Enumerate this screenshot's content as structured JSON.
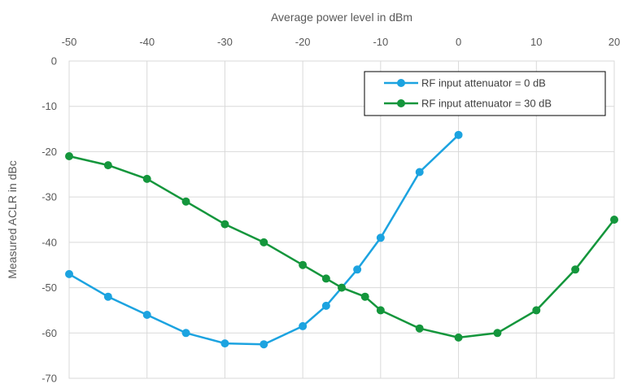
{
  "chart_data": {
    "type": "line",
    "xlabel": "Average power level in dBm",
    "ylabel": "Measured ACLR in dBc",
    "xlim": [
      -50,
      20
    ],
    "ylim": [
      -70,
      0
    ],
    "x_ticks": [
      "-50",
      "-40",
      "-30",
      "-20",
      "-10",
      "0",
      "10",
      "20"
    ],
    "y_ticks": [
      "0",
      "-10",
      "-20",
      "-30",
      "-40",
      "-50",
      "-60",
      "-70"
    ],
    "grid": true,
    "x_axis_position": "top",
    "legend_position": "top-right",
    "series": [
      {
        "name": "RF input attenuator = 0 dB",
        "color": "#1ca3e0",
        "x": [
          -50,
          -45,
          -40,
          -35,
          -30,
          -25,
          -20,
          -17,
          -13,
          -10,
          -5,
          0
        ],
        "y": [
          -47,
          -52,
          -56,
          -60,
          -62.3,
          -62.5,
          -58.5,
          -54,
          -46,
          -39,
          -24.5,
          -16.3
        ]
      },
      {
        "name": "RF input attenuator = 30 dB",
        "color": "#14963c",
        "x": [
          -50,
          -45,
          -40,
          -35,
          -30,
          -25,
          -20,
          -17,
          -15,
          -12,
          -10,
          -5,
          0,
          5,
          10,
          15,
          20
        ],
        "y": [
          -21,
          -23,
          -26,
          -31,
          -36,
          -40,
          -45,
          -48,
          -50,
          -52,
          -55,
          -59,
          -61,
          -60,
          -55,
          -46,
          -35
        ]
      }
    ]
  }
}
